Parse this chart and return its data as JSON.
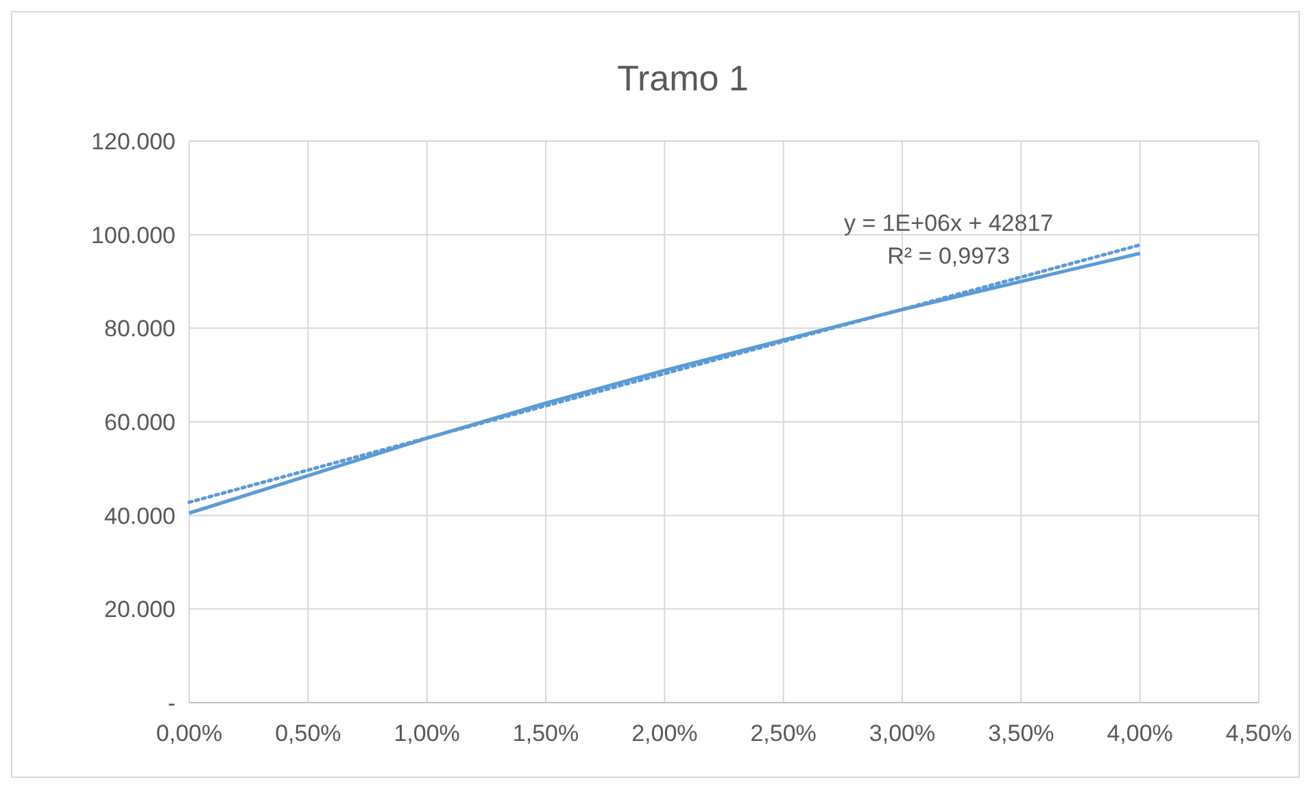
{
  "chart_data": {
    "type": "line",
    "title": "Tramo 1",
    "series": [
      {
        "color": "#5b9bd5",
        "x": [
          0,
          0.005,
          0.01,
          0.015,
          0.02,
          0.025,
          0.03,
          0.035,
          0.04
        ],
        "values": [
          40500,
          48500,
          56500,
          64000,
          71000,
          77500,
          84000,
          90000,
          96000
        ]
      },
      {
        "type": "line",
        "color": "#5b9bd5",
        "line_style": "dotted",
        "x": [
          0,
          0.04
        ],
        "values": [
          42817,
          97800
        ]
      }
    ],
    "xlim": [
      0,
      0.045
    ],
    "xticks": [
      {
        "value": 0,
        "label": "0,00%"
      },
      {
        "value": 0.005,
        "label": "0,50%"
      },
      {
        "value": 0.01,
        "label": "1,00%"
      },
      {
        "value": 0.015,
        "label": "1,50%"
      },
      {
        "value": 0.02,
        "label": "2,00%"
      },
      {
        "value": 0.025,
        "label": "2,50%"
      },
      {
        "value": 0.03,
        "label": "3,00%"
      },
      {
        "value": 0.035,
        "label": "3,50%"
      },
      {
        "value": 0.04,
        "label": "4,00%"
      },
      {
        "value": 0.045,
        "label": "4,50%"
      }
    ],
    "ylim": [
      0,
      120000
    ],
    "yticks": [
      {
        "value": 0,
        "label": "-"
      },
      {
        "value": 20000,
        "label": "20.000"
      },
      {
        "value": 40000,
        "label": "40.000"
      },
      {
        "value": 60000,
        "label": "60.000"
      },
      {
        "value": 80000,
        "label": "80.000"
      },
      {
        "value": 100000,
        "label": "100.000"
      },
      {
        "value": 120000,
        "label": "120.000"
      }
    ],
    "grid": true,
    "marker": "none",
    "line_style": "solid",
    "annotations": [
      "y = 1E+06x + 42817",
      "R² = 0,9973"
    ]
  }
}
